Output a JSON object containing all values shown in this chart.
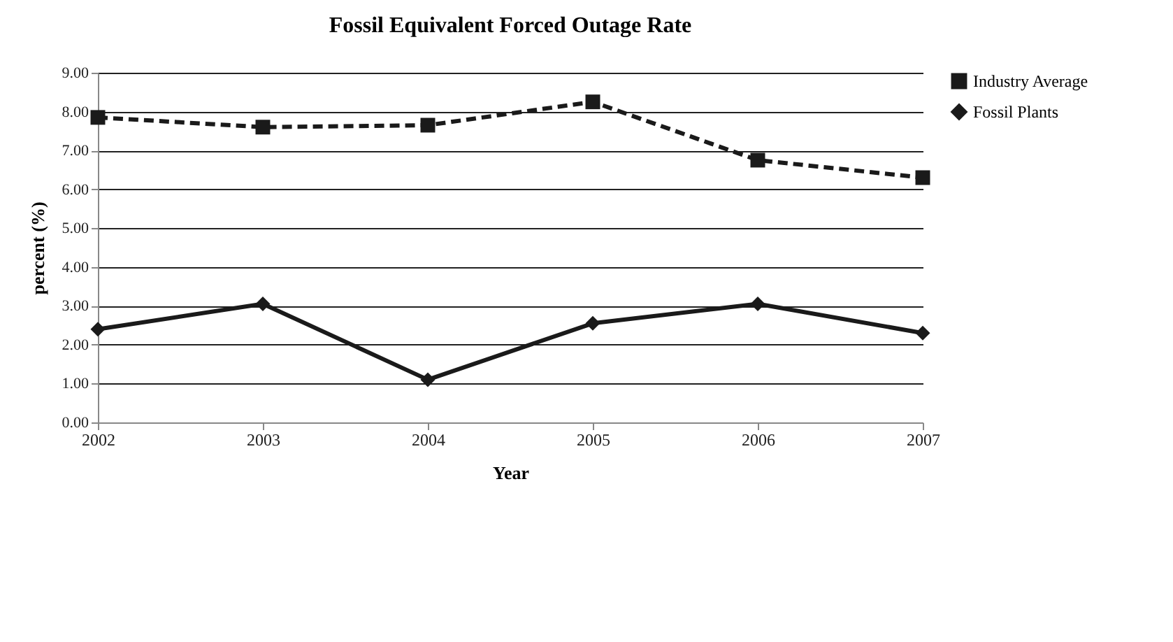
{
  "chart_data": {
    "type": "line",
    "title": "Fossil Equivalent Forced Outage Rate",
    "xlabel": "Year",
    "ylabel": "percent (%)",
    "categories": [
      "2002",
      "2003",
      "2004",
      "2005",
      "2006",
      "2007"
    ],
    "series": [
      {
        "name": "Industry Average",
        "color": "#1a1a1a",
        "line_style": "dashed",
        "marker": "square",
        "values": [
          7.85,
          7.6,
          7.65,
          8.25,
          6.75,
          6.3
        ]
      },
      {
        "name": "Fossil Plants",
        "color": "#1a1a1a",
        "line_style": "solid",
        "marker": "diamond",
        "values": [
          2.4,
          3.05,
          1.1,
          2.55,
          3.05,
          2.3
        ]
      }
    ],
    "ylim": [
      0,
      9
    ],
    "yticks": [
      {
        "value": 0,
        "label": "0.00"
      },
      {
        "value": 1,
        "label": "1.00"
      },
      {
        "value": 2,
        "label": "2.00"
      },
      {
        "value": 3,
        "label": "3.00"
      },
      {
        "value": 4,
        "label": "4.00"
      },
      {
        "value": 5,
        "label": "5.00"
      },
      {
        "value": 6,
        "label": "6.00"
      },
      {
        "value": 7,
        "label": "7.00"
      },
      {
        "value": 8,
        "label": "8.00"
      },
      {
        "value": 9,
        "label": "9.00"
      }
    ],
    "grid": "y",
    "legend": "right"
  }
}
